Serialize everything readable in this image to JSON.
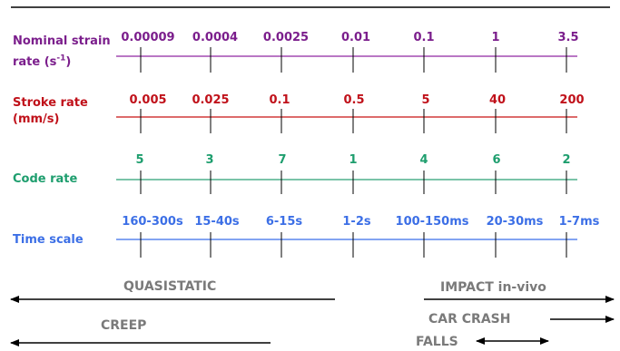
{
  "rows": {
    "strain": {
      "label_line1": "Nominal strain",
      "label_line2_pre": "rate (s",
      "label_exp": "-1",
      "label_line2_post": ")",
      "values": [
        "0.00009",
        "0.0004",
        "0.0025",
        "0.01",
        "0.1",
        "1",
        "3.5"
      ],
      "color": "#7B1E8C"
    },
    "stroke": {
      "label_line1": "Stroke rate",
      "label_line2": "(mm/s)",
      "values": [
        "0.005",
        "0.025",
        "0.1",
        "0.5",
        "5",
        "40",
        "200"
      ],
      "color": "#C0111A"
    },
    "code": {
      "label": "Code rate",
      "values": [
        "5",
        "3",
        "7",
        "1",
        "4",
        "6",
        "2"
      ],
      "color": "#1E9E6E"
    },
    "time": {
      "label": "Time scale",
      "values": [
        "160-300s",
        "15-40s",
        "6-15s",
        "1-2s",
        "100-150ms",
        "20-30ms",
        "1-7ms"
      ],
      "color": "#3C6FE6"
    }
  },
  "regimes": {
    "quasistatic": "QUASISTATIC",
    "impact": "IMPACT in-vivo",
    "creep": "CREEP",
    "car_crash": "CAR CRASH",
    "falls": "FALLS"
  }
}
